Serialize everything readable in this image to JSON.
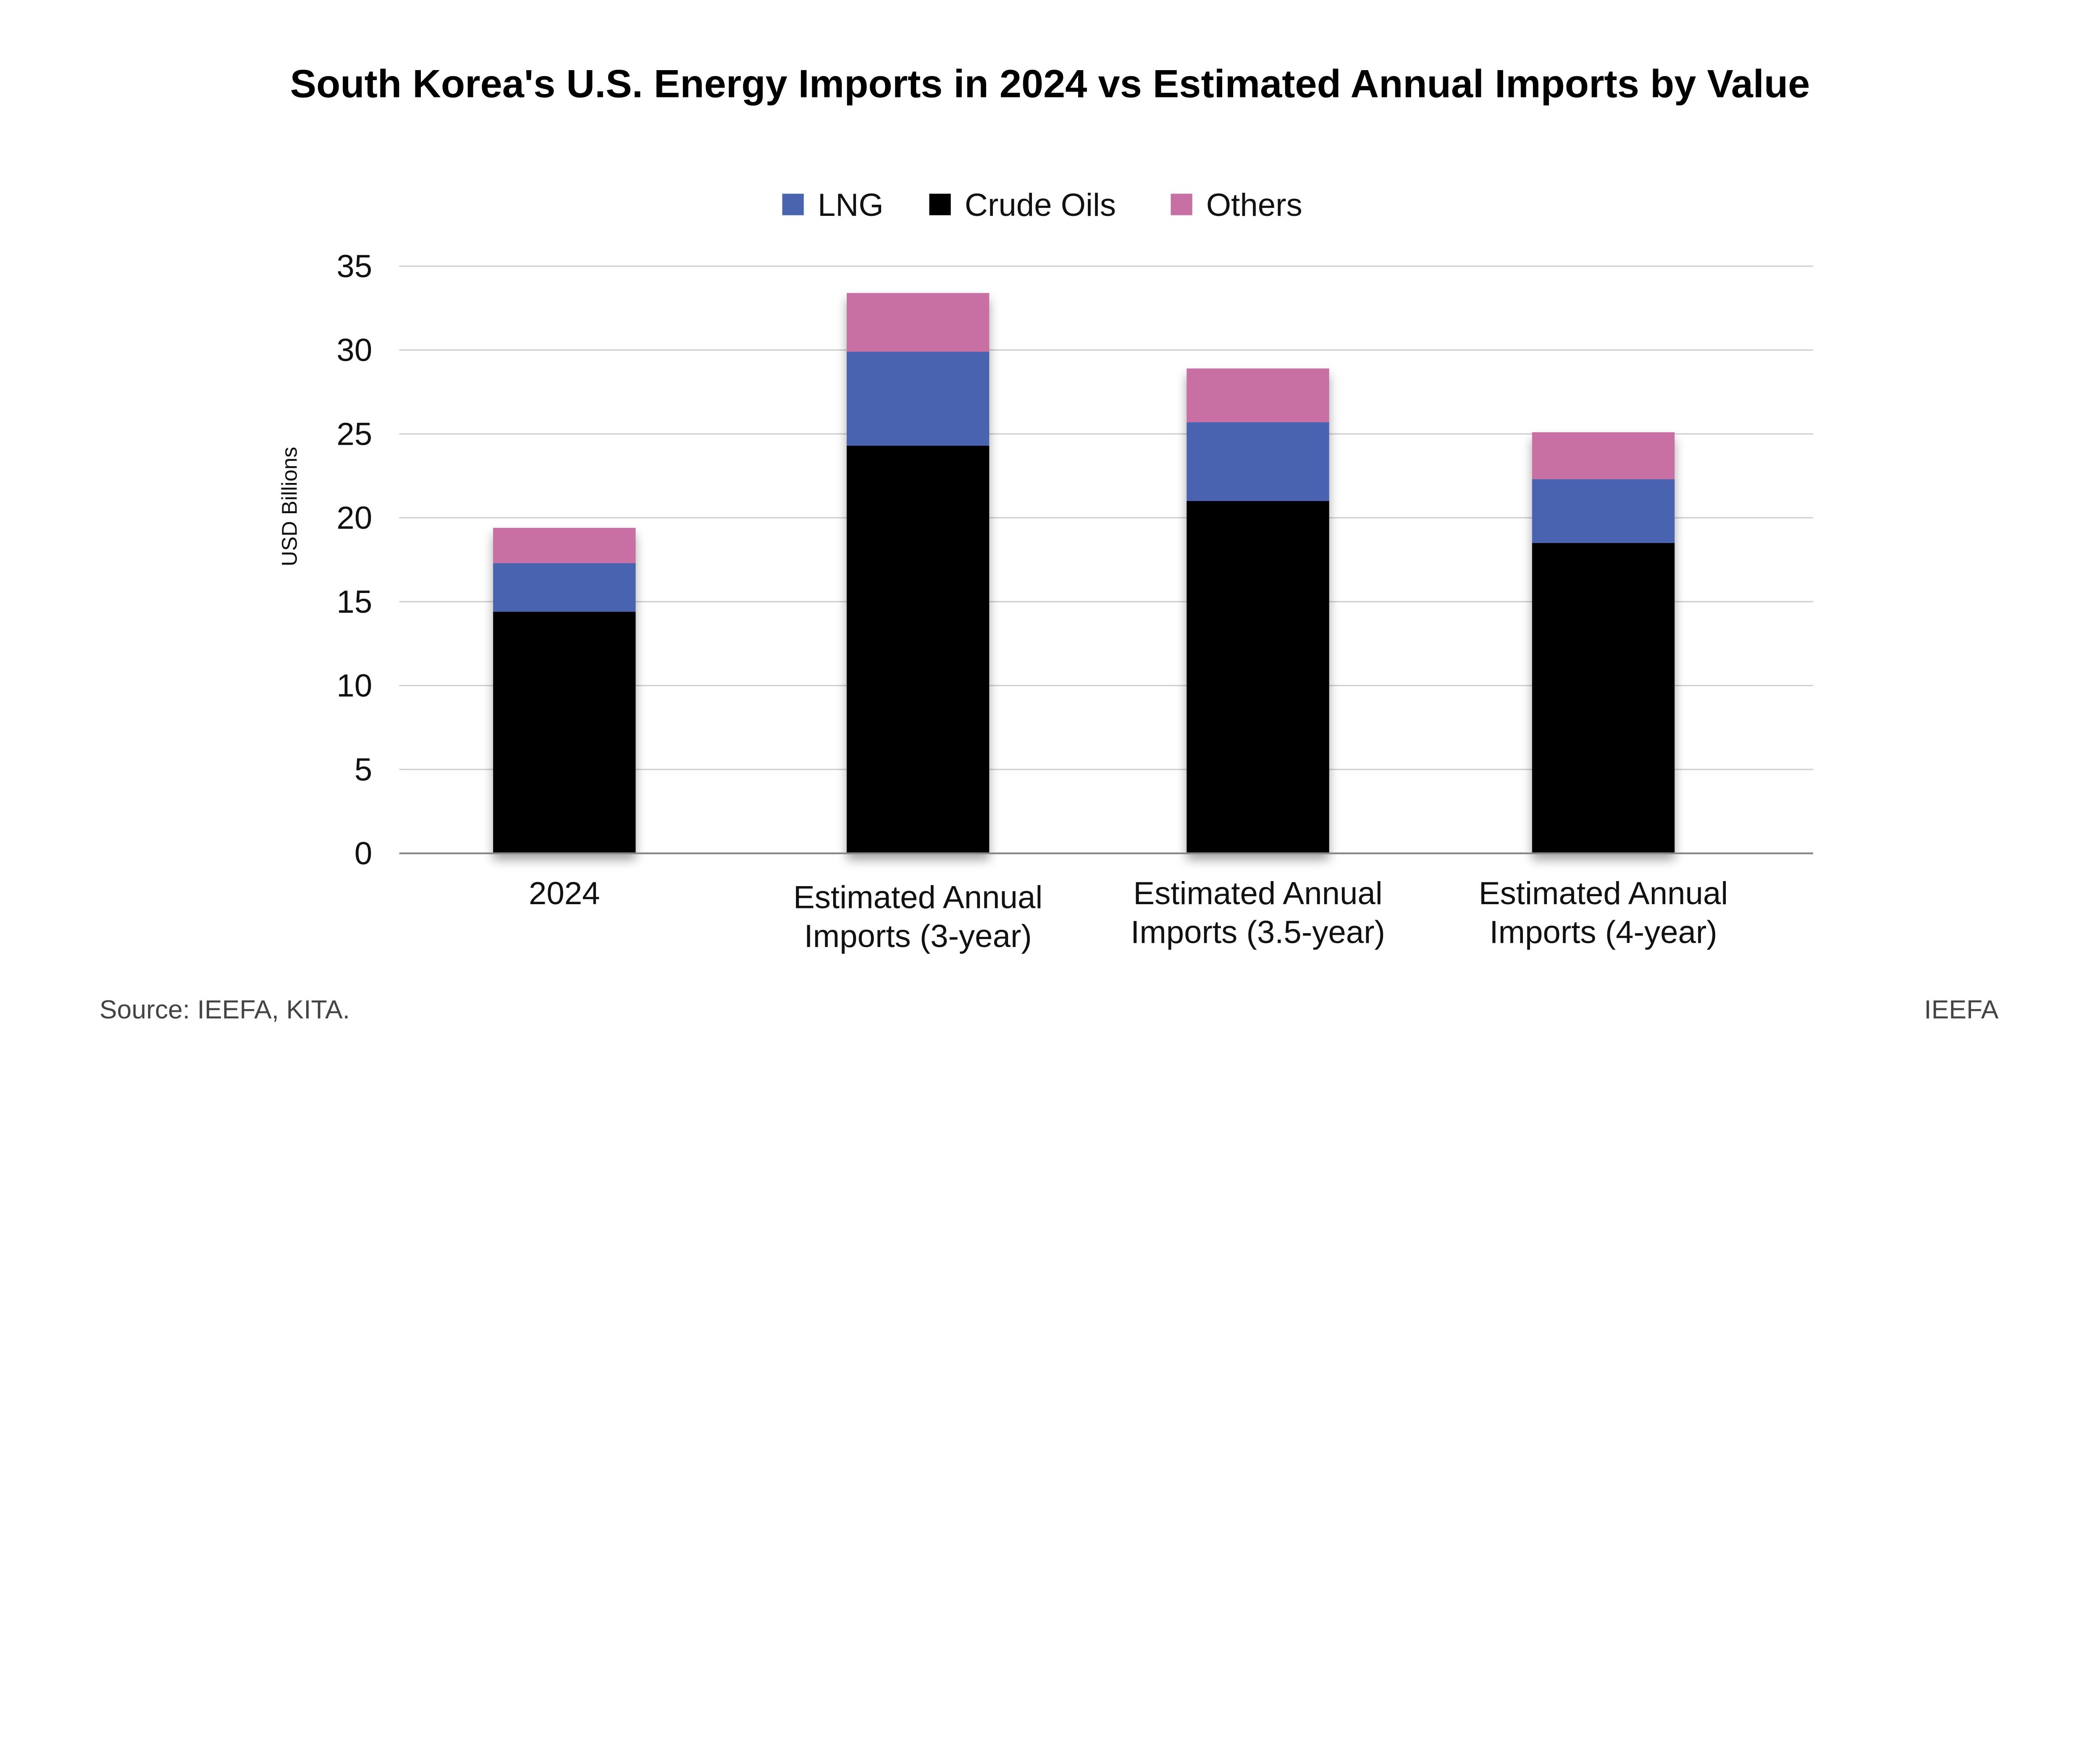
{
  "chart_data": {
    "type": "bar",
    "stacked": true,
    "title": "South Korea's U.S. Energy Imports in 2024 vs Estimated Annual Imports by Value",
    "ylabel": "USD Billions",
    "xlabel": "",
    "ylim": [
      0,
      35
    ],
    "yticks": [
      0,
      5,
      10,
      15,
      20,
      25,
      30,
      35
    ],
    "grid": true,
    "legend_position": "top",
    "categories": [
      [
        "2024"
      ],
      [
        "Estimated Annual",
        "Imports (3-year)"
      ],
      [
        "Estimated Annual",
        "Imports (3.5-year)"
      ],
      [
        "Estimated Annual",
        "Imports (4-year)"
      ]
    ],
    "series": [
      {
        "name": "Crude Oils",
        "color": "#000000",
        "values": [
          14.4,
          24.3,
          21.0,
          18.5
        ]
      },
      {
        "name": "LNG",
        "color": "#4A64B0",
        "values": [
          2.9,
          5.6,
          4.7,
          3.8
        ]
      },
      {
        "name": "Others",
        "color": "#C870A4",
        "values": [
          2.1,
          3.5,
          3.2,
          2.8
        ]
      }
    ],
    "legend_order": [
      "LNG",
      "Crude Oils",
      "Others"
    ]
  },
  "footer": {
    "source": "Source: IEEFA, KITA.",
    "brand": "IEEFA"
  }
}
